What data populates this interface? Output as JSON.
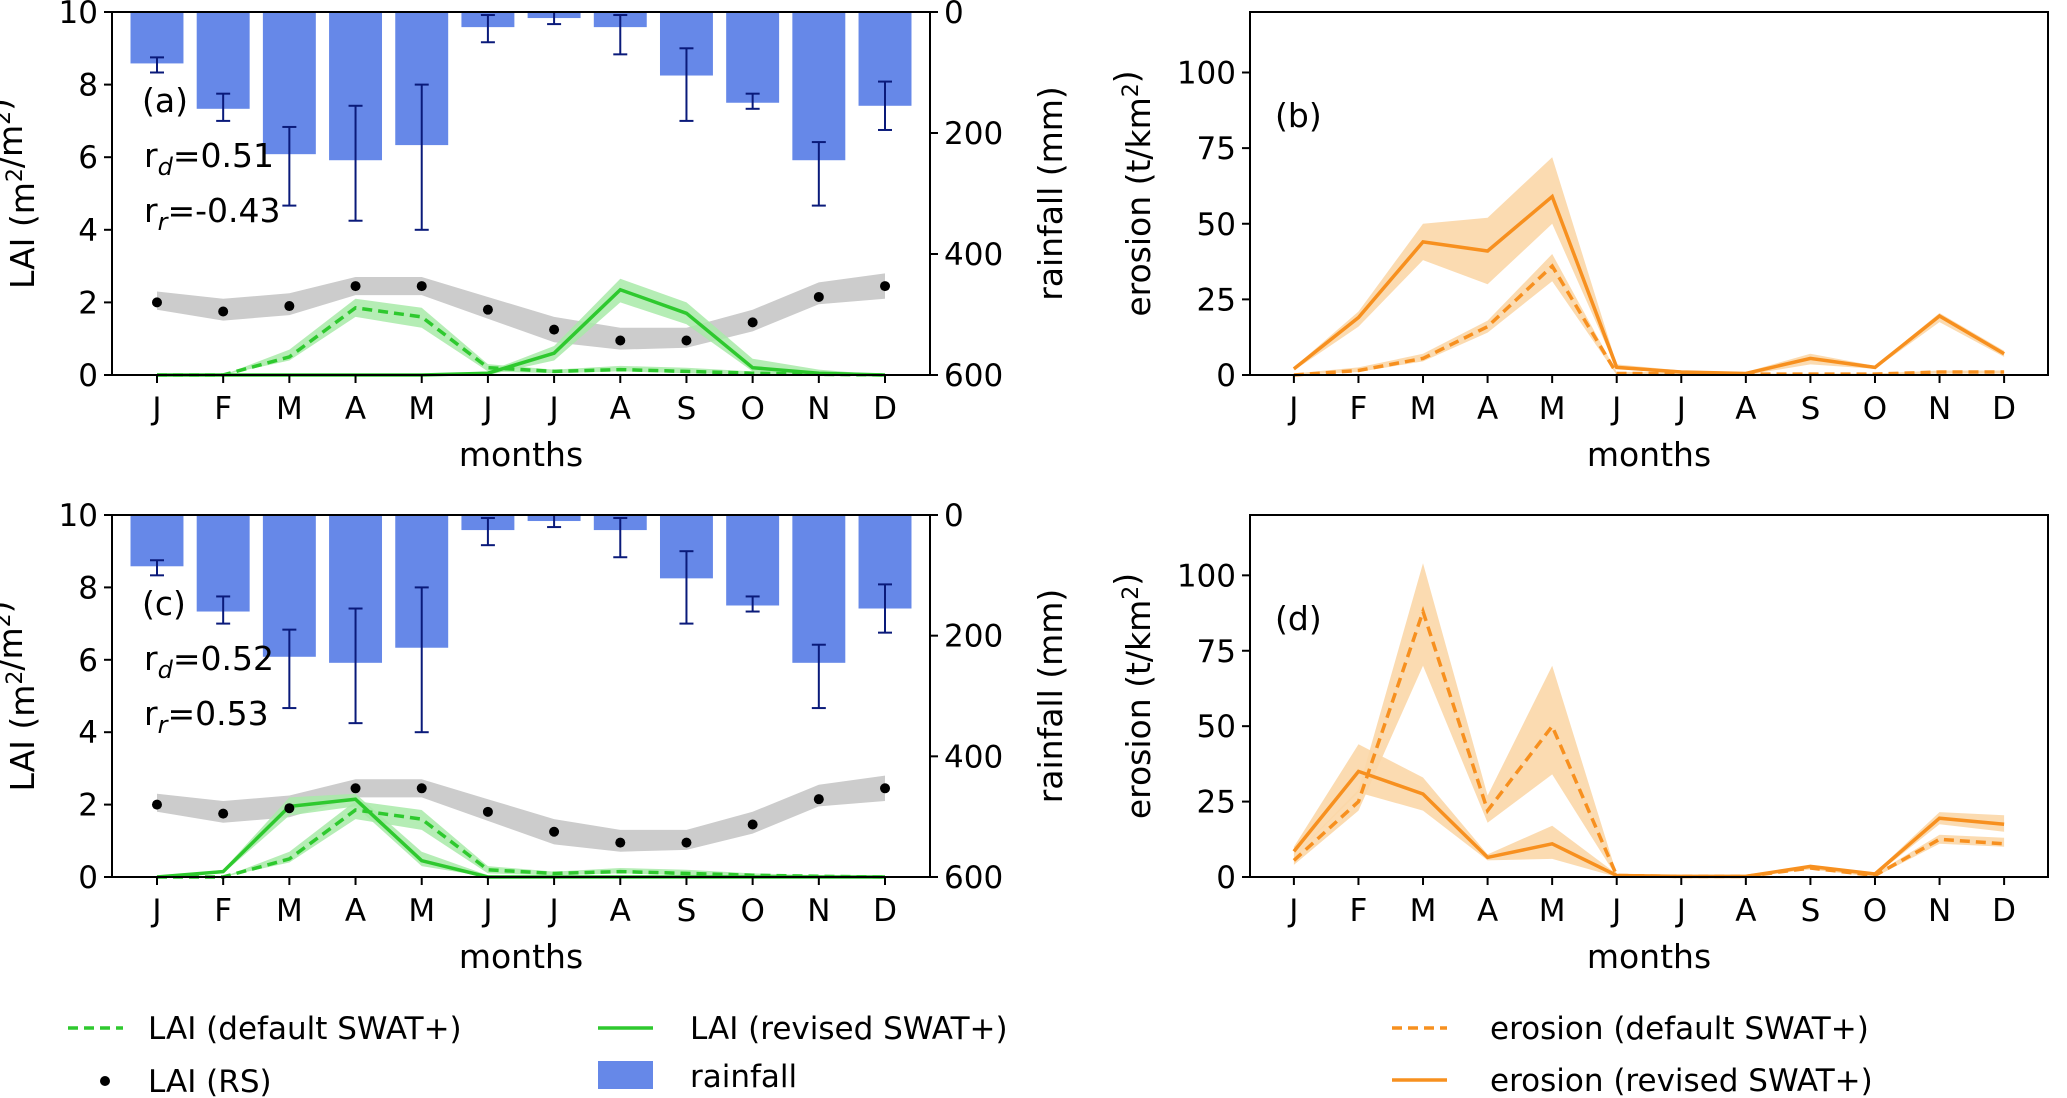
{
  "colors": {
    "rainfall": "#6688e8",
    "rain_err": "#0a1a7a",
    "lai_green": "#2ec92e",
    "lai_band": "#a8eaa8",
    "rs_band": "#cccccc",
    "rs_dot": "#000000",
    "erosion": "#f7901f",
    "erosion_band": "#fbd7a8"
  },
  "legend_left": [
    {
      "label": "LAI (default SWAT+)",
      "style": "dashed-line"
    },
    {
      "label": "LAI (revised SWAT+)",
      "style": "solid-line"
    },
    {
      "label": "LAI (RS)",
      "style": "dot"
    },
    {
      "label": "rainfall",
      "style": "bar"
    }
  ],
  "legend_right": [
    {
      "label": "erosion (default SWAT+)",
      "style": "dashed-line"
    },
    {
      "label": "erosion (revised SWAT+)",
      "style": "solid-line"
    }
  ],
  "chart_data": [
    {
      "panel": "(a)",
      "type": "bar+line",
      "categories": [
        "J",
        "F",
        "M",
        "A",
        "M",
        "J",
        "J",
        "A",
        "S",
        "O",
        "N",
        "D"
      ],
      "xlabel": "months",
      "ylabel": "LAI (m²/m²)",
      "ylim": [
        0,
        10
      ],
      "yticks": [
        "0",
        "2",
        "4",
        "6",
        "8",
        "10"
      ],
      "y2label": "rainfall (mm)",
      "y2lim": [
        0,
        600
      ],
      "y2_inverted": true,
      "y2ticks": [
        "0",
        "200",
        "400",
        "600"
      ],
      "annotations": [
        "(a)",
        "r_d=0.51",
        "r_r=-0.43"
      ],
      "rainfall": [
        85,
        160,
        235,
        245,
        220,
        25,
        10,
        25,
        105,
        150,
        245,
        155
      ],
      "rainfall_err": [
        [
          75,
          100
        ],
        [
          135,
          180
        ],
        [
          190,
          320
        ],
        [
          155,
          345
        ],
        [
          120,
          360
        ],
        [
          5,
          50
        ],
        [
          0,
          20
        ],
        [
          5,
          70
        ],
        [
          60,
          180
        ],
        [
          135,
          160
        ],
        [
          215,
          320
        ],
        [
          115,
          195
        ]
      ],
      "lai_default": [
        0,
        0,
        0.5,
        1.85,
        1.6,
        0.2,
        0.1,
        0.15,
        0.1,
        0.05,
        0.02,
        0
      ],
      "lai_default_band": [
        [
          0,
          0
        ],
        [
          0,
          0
        ],
        [
          0.4,
          0.7
        ],
        [
          1.6,
          2.1
        ],
        [
          1.3,
          1.85
        ],
        [
          0.1,
          0.3
        ],
        [
          0.05,
          0.15
        ],
        [
          0.1,
          0.25
        ],
        [
          0.05,
          0.2
        ],
        [
          0.02,
          0.1
        ],
        [
          0,
          0.05
        ],
        [
          0,
          0
        ]
      ],
      "lai_revised": [
        0,
        0,
        0,
        0,
        0,
        0.05,
        0.6,
        2.35,
        1.7,
        0.2,
        0.05,
        0
      ],
      "lai_revised_band": [
        [
          0,
          0
        ],
        [
          0,
          0
        ],
        [
          0,
          0
        ],
        [
          0,
          0
        ],
        [
          0,
          0
        ],
        [
          0,
          0.1
        ],
        [
          0.4,
          0.8
        ],
        [
          2.0,
          2.65
        ],
        [
          1.4,
          2.0
        ],
        [
          0.1,
          0.45
        ],
        [
          0,
          0.15
        ],
        [
          0,
          0
        ]
      ],
      "lai_rs": [
        2.0,
        1.75,
        1.9,
        2.45,
        2.45,
        1.8,
        1.25,
        0.95,
        0.95,
        1.45,
        2.15,
        2.45
      ],
      "lai_rs_band": [
        [
          1.8,
          2.3
        ],
        [
          1.5,
          2.1
        ],
        [
          1.65,
          2.25
        ],
        [
          2.2,
          2.7
        ],
        [
          2.2,
          2.7
        ],
        [
          1.55,
          2.15
        ],
        [
          0.9,
          1.6
        ],
        [
          0.7,
          1.3
        ],
        [
          0.75,
          1.3
        ],
        [
          1.2,
          1.8
        ],
        [
          1.95,
          2.55
        ],
        [
          2.1,
          2.8
        ]
      ]
    },
    {
      "panel": "(b)",
      "type": "line",
      "categories": [
        "J",
        "F",
        "M",
        "A",
        "M",
        "J",
        "J",
        "A",
        "S",
        "O",
        "N",
        "D"
      ],
      "xlabel": "months",
      "ylabel": "erosion (t/km²)",
      "ylim": [
        0,
        120
      ],
      "yticks": [
        "0",
        "25",
        "50",
        "75",
        "100"
      ],
      "annotations": [
        "(b)"
      ],
      "erosion_default": [
        0,
        1.5,
        5.5,
        16,
        36,
        0.5,
        0.5,
        0.3,
        0.3,
        0.3,
        1,
        1
      ],
      "erosion_default_band": [
        [
          0,
          0.5
        ],
        [
          1,
          2.5
        ],
        [
          4.5,
          7
        ],
        [
          14,
          18
        ],
        [
          31,
          40
        ],
        [
          0,
          1
        ],
        [
          0,
          1
        ],
        [
          0,
          0.5
        ],
        [
          0,
          0.5
        ],
        [
          0,
          0.5
        ],
        [
          0.5,
          1.5
        ],
        [
          0.5,
          1.5
        ]
      ],
      "erosion_revised": [
        2,
        19,
        44,
        41,
        59,
        2.5,
        1,
        0.5,
        5.5,
        2.5,
        19.5,
        7
      ],
      "erosion_revised_band": [
        [
          1.5,
          2.5
        ],
        [
          16,
          21
        ],
        [
          38,
          50
        ],
        [
          30,
          52
        ],
        [
          50,
          72
        ],
        [
          2,
          3.5
        ],
        [
          0.5,
          1.5
        ],
        [
          0,
          1
        ],
        [
          3.5,
          7
        ],
        [
          2,
          3
        ],
        [
          17.5,
          20.5
        ],
        [
          6,
          8
        ]
      ]
    },
    {
      "panel": "(c)",
      "type": "bar+line",
      "categories": [
        "J",
        "F",
        "M",
        "A",
        "M",
        "J",
        "J",
        "A",
        "S",
        "O",
        "N",
        "D"
      ],
      "xlabel": "months",
      "ylabel": "LAI (m²/m²)",
      "ylim": [
        0,
        10
      ],
      "yticks": [
        "0",
        "2",
        "4",
        "6",
        "8",
        "10"
      ],
      "y2label": "rainfall (mm)",
      "y2lim": [
        0,
        600
      ],
      "y2_inverted": true,
      "y2ticks": [
        "0",
        "200",
        "400",
        "600"
      ],
      "annotations": [
        "(c)",
        "r_d=0.52",
        "r_r=0.53"
      ],
      "rainfall": [
        85,
        160,
        235,
        245,
        220,
        25,
        10,
        25,
        105,
        150,
        245,
        155
      ],
      "rainfall_err": [
        [
          75,
          100
        ],
        [
          135,
          180
        ],
        [
          190,
          320
        ],
        [
          155,
          345
        ],
        [
          120,
          360
        ],
        [
          5,
          50
        ],
        [
          0,
          20
        ],
        [
          5,
          70
        ],
        [
          60,
          180
        ],
        [
          135,
          160
        ],
        [
          215,
          320
        ],
        [
          115,
          195
        ]
      ],
      "lai_default": [
        0,
        0,
        0.5,
        1.85,
        1.6,
        0.2,
        0.1,
        0.15,
        0.1,
        0.05,
        0.02,
        0
      ],
      "lai_default_band": [
        [
          0,
          0
        ],
        [
          0,
          0
        ],
        [
          0.4,
          0.7
        ],
        [
          1.6,
          2.1
        ],
        [
          1.3,
          1.85
        ],
        [
          0.1,
          0.3
        ],
        [
          0.05,
          0.15
        ],
        [
          0.1,
          0.25
        ],
        [
          0.05,
          0.2
        ],
        [
          0.02,
          0.1
        ],
        [
          0,
          0.05
        ],
        [
          0,
          0
        ]
      ],
      "lai_revised": [
        0,
        0.15,
        1.95,
        2.15,
        0.45,
        0,
        0,
        0,
        0,
        0,
        0,
        0
      ],
      "lai_revised_band": [
        [
          0,
          0
        ],
        [
          0.1,
          0.2
        ],
        [
          1.7,
          2.2
        ],
        [
          1.95,
          2.3
        ],
        [
          0.3,
          0.7
        ],
        [
          0,
          0.05
        ],
        [
          0,
          0
        ],
        [
          0,
          0
        ],
        [
          0,
          0
        ],
        [
          0,
          0
        ],
        [
          0,
          0
        ],
        [
          0,
          0
        ]
      ],
      "lai_rs": [
        2.0,
        1.75,
        1.9,
        2.45,
        2.45,
        1.8,
        1.25,
        0.95,
        0.95,
        1.45,
        2.15,
        2.45
      ],
      "lai_rs_band": [
        [
          1.8,
          2.3
        ],
        [
          1.5,
          2.1
        ],
        [
          1.65,
          2.25
        ],
        [
          2.2,
          2.7
        ],
        [
          2.2,
          2.7
        ],
        [
          1.55,
          2.15
        ],
        [
          0.9,
          1.6
        ],
        [
          0.7,
          1.3
        ],
        [
          0.75,
          1.3
        ],
        [
          1.2,
          1.8
        ],
        [
          1.95,
          2.55
        ],
        [
          2.1,
          2.8
        ]
      ]
    },
    {
      "panel": "(d)",
      "type": "line",
      "categories": [
        "J",
        "F",
        "M",
        "A",
        "M",
        "J",
        "J",
        "A",
        "S",
        "O",
        "N",
        "D"
      ],
      "xlabel": "months",
      "ylabel": "erosion (t/km²)",
      "ylim": [
        0,
        120
      ],
      "yticks": [
        "0",
        "25",
        "50",
        "75",
        "100"
      ],
      "annotations": [
        "(d)"
      ],
      "erosion_default": [
        5.5,
        25,
        88,
        22,
        50,
        0.5,
        0.2,
        0.2,
        3,
        0.5,
        12.5,
        11
      ],
      "erosion_default_band": [
        [
          4,
          7
        ],
        [
          22,
          29
        ],
        [
          70,
          104
        ],
        [
          18,
          27
        ],
        [
          34,
          70
        ],
        [
          0,
          1
        ],
        [
          0,
          0.5
        ],
        [
          0,
          0.5
        ],
        [
          2.5,
          3.5
        ],
        [
          0,
          1
        ],
        [
          11,
          14
        ],
        [
          10,
          13
        ]
      ],
      "erosion_revised": [
        8.5,
        35,
        27.5,
        6.5,
        11,
        0.5,
        0.2,
        0.2,
        3.5,
        1,
        19.5,
        17.5
      ],
      "erosion_revised_band": [
        [
          7,
          10
        ],
        [
          28,
          44
        ],
        [
          22,
          33
        ],
        [
          5.5,
          7.5
        ],
        [
          6,
          17
        ],
        [
          0,
          1
        ],
        [
          0,
          0.5
        ],
        [
          0,
          0.5
        ],
        [
          3,
          4
        ],
        [
          0.5,
          1.5
        ],
        [
          17.5,
          21.5
        ],
        [
          15,
          20.5
        ]
      ]
    }
  ]
}
